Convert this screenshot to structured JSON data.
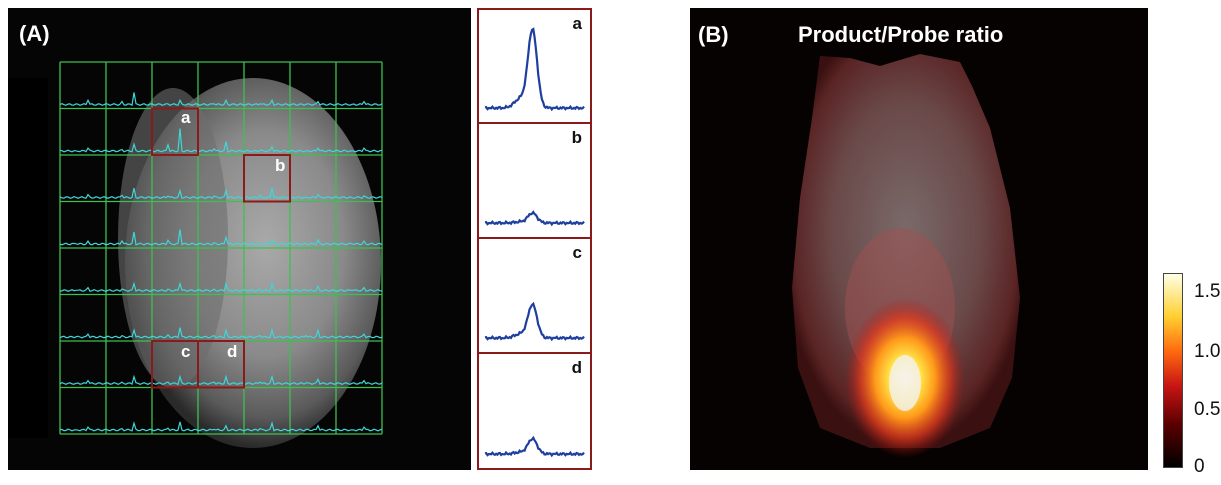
{
  "panel_a": {
    "label": "(A)",
    "grid_letters": [
      "a",
      "b",
      "c",
      "d"
    ],
    "spectra": [
      {
        "letter": "a",
        "peak_level": 0.95
      },
      {
        "letter": "b",
        "peak_level": 0.12
      },
      {
        "letter": "c",
        "peak_level": 0.4
      },
      {
        "letter": "d",
        "peak_level": 0.18
      }
    ]
  },
  "panel_b": {
    "label": "(B)",
    "title": "Product/Probe ratio",
    "colorbar_ticks": [
      "1.5",
      "1.0",
      "0.5",
      "0"
    ]
  },
  "colors": {
    "grid_line": "#3fbf4f",
    "spectrum_trace": "#3fd6d6",
    "highlight_box": "#8b1a1a",
    "zoom_trace": "#1f3f9f"
  }
}
